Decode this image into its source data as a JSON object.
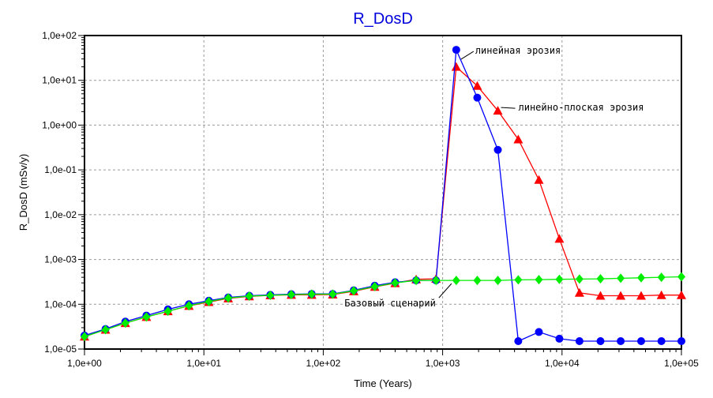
{
  "chart_data": {
    "type": "line",
    "title": "R_DosD",
    "xlabel": "Time (Years)",
    "ylabel": "R_DosD (mSv/y)",
    "x_scale": "log",
    "y_scale": "log",
    "xlim": [
      1,
      100000
    ],
    "ylim": [
      1e-05,
      100
    ],
    "grid": true,
    "x_ticks": [
      {
        "value": 1,
        "label": "1,0e+00"
      },
      {
        "value": 10,
        "label": "1,0e+01"
      },
      {
        "value": 100,
        "label": "1,0e+02"
      },
      {
        "value": 1000,
        "label": "1,0e+03"
      },
      {
        "value": 10000,
        "label": "1,0e+04"
      },
      {
        "value": 100000,
        "label": "1,0e+05"
      }
    ],
    "y_ticks": [
      {
        "value": 100,
        "label": "1,0e+02"
      },
      {
        "value": 10,
        "label": "1,0e+01"
      },
      {
        "value": 1,
        "label": "1,0e+00"
      },
      {
        "value": 0.1,
        "label": "1,0e-01"
      },
      {
        "value": 0.01,
        "label": "1,0e-02"
      },
      {
        "value": 0.001,
        "label": "1,0e-03"
      },
      {
        "value": 0.0001,
        "label": "1,0e-04"
      },
      {
        "value": 1e-05,
        "label": "1,0e-05"
      }
    ],
    "series": [
      {
        "name": "линейно-плоская эрозия",
        "color": "#ff0000",
        "marker": "triangle",
        "points": [
          [
            1.0,
            1.9e-05
          ],
          [
            1.5,
            2.7e-05
          ],
          [
            2.2,
            3.8e-05
          ],
          [
            3.3,
            5.2e-05
          ],
          [
            5.0,
            7e-05
          ],
          [
            7.5,
            9.2e-05
          ],
          [
            11,
            0.000112
          ],
          [
            16,
            0.000135
          ],
          [
            24,
            0.00015
          ],
          [
            36,
            0.000158
          ],
          [
            54,
            0.000162
          ],
          [
            80,
            0.000162
          ],
          [
            120,
            0.000165
          ],
          [
            180,
            0.000195
          ],
          [
            270,
            0.000245
          ],
          [
            400,
            0.000295
          ],
          [
            600,
            0.00036
          ],
          [
            880,
            0.00037
          ],
          [
            1300,
            20
          ],
          [
            1950,
            7.5
          ],
          [
            2900,
            2.1
          ],
          [
            4300,
            0.48
          ],
          [
            6400,
            0.06
          ],
          [
            9500,
            0.0029
          ],
          [
            14000,
            0.00018
          ],
          [
            21000,
            0.000155
          ],
          [
            31000,
            0.000155
          ],
          [
            46000,
            0.000155
          ],
          [
            68000,
            0.00016
          ],
          [
            100000,
            0.00016
          ]
        ]
      },
      {
        "name": "линейная эрозия",
        "color": "#0000ff",
        "marker": "circle",
        "points": [
          [
            1.0,
            2e-05
          ],
          [
            1.5,
            2.8e-05
          ],
          [
            2.2,
            4.1e-05
          ],
          [
            3.3,
            5.6e-05
          ],
          [
            5.0,
            7.7e-05
          ],
          [
            7.5,
            0.0001
          ],
          [
            11,
            0.00012
          ],
          [
            16,
            0.000142
          ],
          [
            24,
            0.000155
          ],
          [
            36,
            0.000162
          ],
          [
            54,
            0.000168
          ],
          [
            80,
            0.00017
          ],
          [
            120,
            0.00017
          ],
          [
            180,
            0.000205
          ],
          [
            270,
            0.00026
          ],
          [
            400,
            0.00031
          ],
          [
            600,
            0.00034
          ],
          [
            880,
            0.00034
          ],
          [
            1300,
            48
          ],
          [
            1950,
            4.1
          ],
          [
            2900,
            0.28
          ],
          [
            4300,
            1.5e-05
          ],
          [
            6400,
            2.4e-05
          ],
          [
            9500,
            1.7e-05
          ],
          [
            14000,
            1.5e-05
          ],
          [
            21000,
            1.5e-05
          ],
          [
            31000,
            1.5e-05
          ],
          [
            46000,
            1.5e-05
          ],
          [
            68000,
            1.5e-05
          ],
          [
            100000,
            1.5e-05
          ]
        ]
      },
      {
        "name": "Базовый сценарий",
        "color": "#00ee00",
        "marker": "diamond",
        "points": [
          [
            1.0,
            1.9e-05
          ],
          [
            1.5,
            2.7e-05
          ],
          [
            2.2,
            3.8e-05
          ],
          [
            3.3,
            5.2e-05
          ],
          [
            5.0,
            7e-05
          ],
          [
            7.5,
            9.3e-05
          ],
          [
            11,
            0.000115
          ],
          [
            16,
            0.000138
          ],
          [
            24,
            0.000152
          ],
          [
            36,
            0.000158
          ],
          [
            54,
            0.000165
          ],
          [
            80,
            0.000168
          ],
          [
            120,
            0.000168
          ],
          [
            180,
            0.0002
          ],
          [
            270,
            0.000248
          ],
          [
            400,
            0.0003
          ],
          [
            600,
            0.00034
          ],
          [
            880,
            0.00034
          ],
          [
            1300,
            0.00034
          ],
          [
            1950,
            0.00034
          ],
          [
            2900,
            0.00034
          ],
          [
            4300,
            0.00035
          ],
          [
            6400,
            0.000355
          ],
          [
            9500,
            0.00036
          ],
          [
            14000,
            0.000365
          ],
          [
            21000,
            0.00037
          ],
          [
            31000,
            0.00038
          ],
          [
            46000,
            0.00039
          ],
          [
            68000,
            0.0004
          ],
          [
            100000,
            0.00041
          ]
        ]
      }
    ],
    "annotations": [
      {
        "text": "линейная эрозия",
        "x": 1300,
        "y": 48,
        "anchor": "right"
      },
      {
        "text": "линейно-плоская эрозия",
        "x": 2900,
        "y": 2.1,
        "anchor": "right"
      },
      {
        "text": "Базовый сценарий",
        "x": 1300,
        "y": 0.00034,
        "anchor": "below"
      }
    ]
  }
}
